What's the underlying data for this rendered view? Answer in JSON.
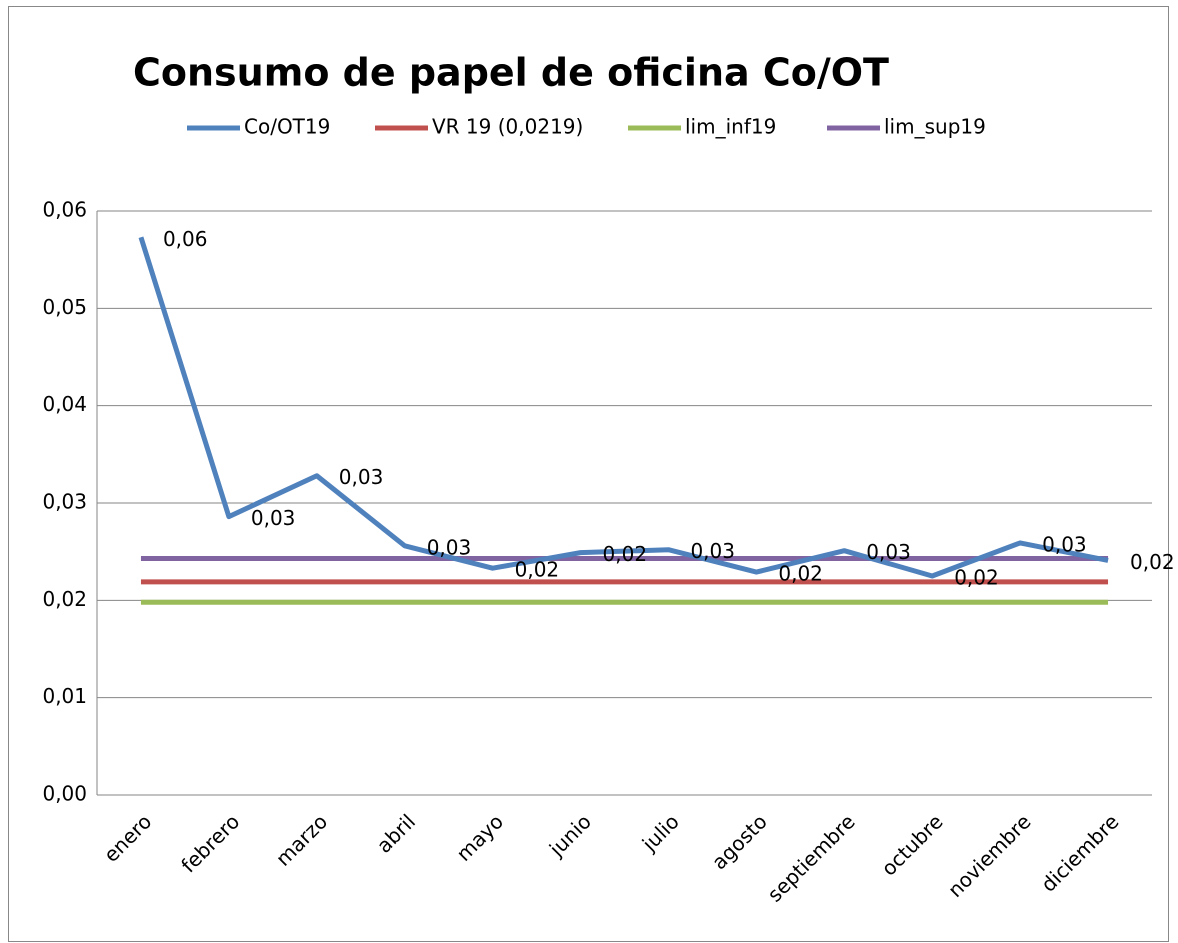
{
  "chart_data": {
    "type": "line",
    "title": "Consumo de papel de oficina Co/OT",
    "categories": [
      "enero",
      "febrero",
      "marzo",
      "abril",
      "mayo",
      "junio",
      "julio",
      "agosto",
      "septiembre",
      "octubre",
      "noviembre",
      "diciembre"
    ],
    "series": [
      {
        "name": "Co/OT19",
        "color": "#4f81bd",
        "values": [
          0.0573,
          0.0286,
          0.0328,
          0.0256,
          0.0233,
          0.0249,
          0.0252,
          0.0229,
          0.0251,
          0.0225,
          0.0259,
          0.0241
        ],
        "value_labels": [
          "0,06",
          "0,03",
          "0,03",
          "0,03",
          "0,02",
          "0,02",
          "0,03",
          "0,02",
          "0,03",
          "0,02",
          "0,03",
          "0,02"
        ]
      },
      {
        "name": "VR 19 (0,0219)",
        "color": "#c0504d",
        "values": [
          0.0219,
          0.0219,
          0.0219,
          0.0219,
          0.0219,
          0.0219,
          0.0219,
          0.0219,
          0.0219,
          0.0219,
          0.0219,
          0.0219
        ]
      },
      {
        "name": "lim_inf19",
        "color": "#9bbb59",
        "values": [
          0.0198,
          0.0198,
          0.0198,
          0.0198,
          0.0198,
          0.0198,
          0.0198,
          0.0198,
          0.0198,
          0.0198,
          0.0198,
          0.0198
        ]
      },
      {
        "name": "lim_sup19",
        "color": "#8064a2",
        "values": [
          0.0243,
          0.0243,
          0.0243,
          0.0243,
          0.0243,
          0.0243,
          0.0243,
          0.0243,
          0.0243,
          0.0243,
          0.0243,
          0.0243
        ]
      }
    ],
    "ylim": [
      0,
      0.06
    ],
    "yticks": [
      {
        "value": 0,
        "label": "0,00"
      },
      {
        "value": 0.01,
        "label": "0,01"
      },
      {
        "value": 0.02,
        "label": "0,02"
      },
      {
        "value": 0.03,
        "label": "0,03"
      },
      {
        "value": 0.04,
        "label": "0,04"
      },
      {
        "value": 0.05,
        "label": "0,05"
      },
      {
        "value": 0.06,
        "label": "0,06"
      }
    ],
    "grid": true,
    "legend": "top"
  }
}
